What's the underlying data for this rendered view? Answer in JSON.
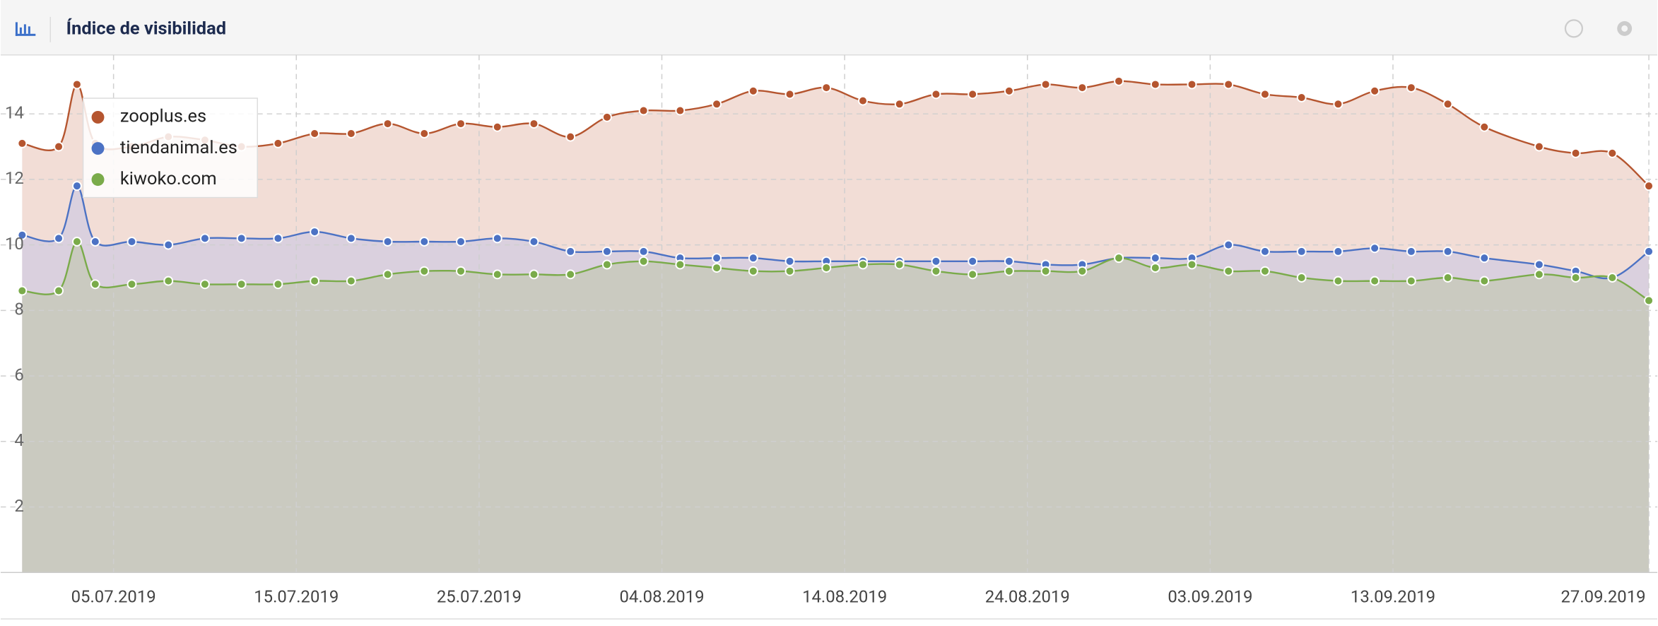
{
  "header": {
    "title": "Índice de visibilidad"
  },
  "chart_data": {
    "type": "area",
    "x": [
      "30.06.2019",
      "02.07.2019",
      "03.07.2019",
      "04.07.2019",
      "06.07.2019",
      "08.07.2019",
      "10.07.2019",
      "12.07.2019",
      "14.07.2019",
      "16.07.2019",
      "18.07.2019",
      "20.07.2019",
      "22.07.2019",
      "24.07.2019",
      "26.07.2019",
      "28.07.2019",
      "30.07.2019",
      "01.08.2019",
      "03.08.2019",
      "05.08.2019",
      "07.08.2019",
      "09.08.2019",
      "11.08.2019",
      "13.08.2019",
      "15.08.2019",
      "17.08.2019",
      "19.08.2019",
      "21.08.2019",
      "23.08.2019",
      "25.08.2019",
      "27.08.2019",
      "29.08.2019",
      "31.08.2019",
      "02.09.2019",
      "04.09.2019",
      "06.09.2019",
      "08.09.2019",
      "10.09.2019",
      "12.09.2019",
      "14.09.2019",
      "16.09.2019",
      "18.09.2019",
      "21.09.2019",
      "23.09.2019",
      "25.09.2019",
      "27.09.2019"
    ],
    "series": [
      {
        "name": "zooplus.es",
        "color": "#b5552f",
        "fill": "#f2ddd6",
        "values": [
          13.1,
          13.0,
          14.9,
          13.1,
          13.0,
          13.3,
          13.2,
          13.0,
          13.1,
          13.4,
          13.4,
          13.7,
          13.4,
          13.7,
          13.6,
          13.7,
          13.3,
          13.9,
          14.1,
          14.1,
          14.3,
          14.7,
          14.6,
          14.8,
          14.4,
          14.3,
          14.6,
          14.6,
          14.7,
          14.9,
          14.8,
          15.0,
          14.9,
          14.9,
          14.9,
          14.6,
          14.5,
          14.3,
          14.7,
          14.8,
          14.3,
          13.6,
          13.0,
          12.8,
          12.8,
          11.8
        ]
      },
      {
        "name": "tiendanimal.es",
        "color": "#4c72c4",
        "fill": "#d2cbe0",
        "values": [
          10.3,
          10.2,
          11.8,
          10.1,
          10.1,
          10.0,
          10.2,
          10.2,
          10.2,
          10.4,
          10.2,
          10.1,
          10.1,
          10.1,
          10.2,
          10.1,
          9.8,
          9.8,
          9.8,
          9.6,
          9.6,
          9.6,
          9.5,
          9.5,
          9.5,
          9.5,
          9.5,
          9.5,
          9.5,
          9.4,
          9.4,
          9.6,
          9.6,
          9.6,
          10.0,
          9.8,
          9.8,
          9.8,
          9.9,
          9.8,
          9.8,
          9.6,
          9.4,
          9.2,
          9.0,
          9.8
        ]
      },
      {
        "name": "kiwoko.com",
        "color": "#7aab4a",
        "fill": "#c4c8b6",
        "values": [
          8.6,
          8.6,
          10.1,
          8.8,
          8.8,
          8.9,
          8.8,
          8.8,
          8.8,
          8.9,
          8.9,
          9.1,
          9.2,
          9.2,
          9.1,
          9.1,
          9.1,
          9.4,
          9.5,
          9.4,
          9.3,
          9.2,
          9.2,
          9.3,
          9.4,
          9.4,
          9.2,
          9.1,
          9.2,
          9.2,
          9.2,
          9.6,
          9.3,
          9.4,
          9.2,
          9.2,
          9.0,
          8.9,
          8.9,
          8.9,
          9.0,
          8.9,
          9.1,
          9.0,
          9.0,
          8.3
        ]
      }
    ],
    "xlim": [
      "29.06.2019",
      "27.09.2019"
    ],
    "xticks": [
      "05.07.2019",
      "15.07.2019",
      "25.07.2019",
      "04.08.2019",
      "14.08.2019",
      "24.08.2019",
      "03.09.2019",
      "13.09.2019",
      "27.09.2019"
    ],
    "ylim": [
      0,
      15.8
    ],
    "yticks": [
      2,
      4,
      6,
      8,
      10,
      12,
      14
    ],
    "grid": true,
    "legend": "top-left"
  }
}
